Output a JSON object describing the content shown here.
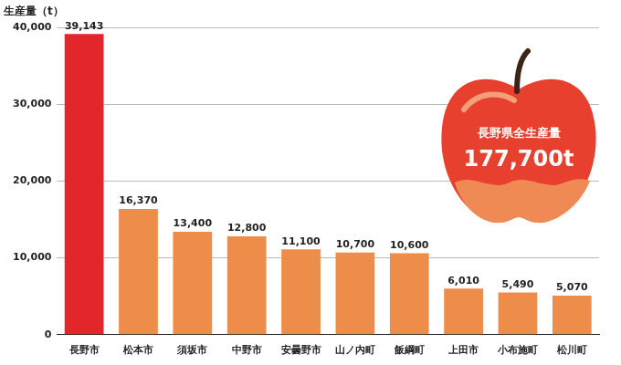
{
  "chart_data": {
    "type": "bar",
    "y_label": "生産量（t）",
    "categories": [
      "長野市",
      "松本市",
      "須坂市",
      "中野市",
      "安曇野市",
      "山ノ内町",
      "飯綱町",
      "上田市",
      "小布施町",
      "松川町"
    ],
    "values": [
      39143,
      16370,
      13400,
      12800,
      11100,
      10700,
      10600,
      6010,
      5490,
      5070
    ],
    "value_labels": [
      "39,143",
      "16,370",
      "13,400",
      "12,800",
      "11,100",
      "10,700",
      "10,600",
      "6,010",
      "5,490",
      "5,070"
    ],
    "colors": [
      "#e3262b",
      "#ee8c4a",
      "#ee8c4a",
      "#ee8c4a",
      "#ee8c4a",
      "#ee8c4a",
      "#ee8c4a",
      "#ee8c4a",
      "#ee8c4a",
      "#ee8c4a"
    ],
    "ylim": [
      0,
      40000
    ],
    "yticks": [
      0,
      {
        "value": 10000,
        "label": "10,000"
      },
      {
        "value": 20000,
        "label": "20,000"
      },
      {
        "value": 30000,
        "label": "30,000"
      },
      {
        "value": 40000,
        "label": "40,000"
      }
    ],
    "grid": true,
    "data_labels": true,
    "annotations": [
      "長野県全生産量",
      "177,700t"
    ]
  }
}
